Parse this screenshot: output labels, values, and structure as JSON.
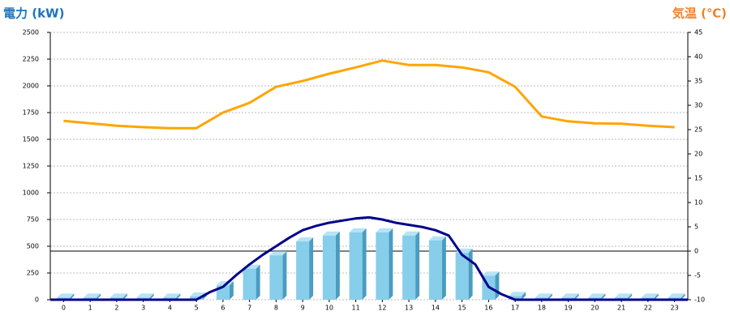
{
  "chart_data": {
    "type": "bar",
    "title": "電力 (kW)",
    "title_right": "気温 (℃)",
    "categories": [
      "0",
      "1",
      "2",
      "3",
      "4",
      "5",
      "6",
      "7",
      "8",
      "9",
      "10",
      "11",
      "12",
      "13",
      "14",
      "15",
      "16",
      "17",
      "18",
      "19",
      "20",
      "21",
      "22",
      "23"
    ],
    "series": [
      {
        "type": "bar",
        "color": "#87ceeb",
        "values": [
          20,
          20,
          20,
          20,
          20,
          30,
          135,
          290,
          415,
          545,
          600,
          630,
          630,
          600,
          555,
          440,
          225,
          35,
          20,
          20,
          20,
          20,
          20,
          20
        ]
      },
      {
        "type": "line",
        "color": "#00008b",
        "x": [
          -0.5,
          5,
          5.5,
          6,
          6.5,
          7,
          7.5,
          8,
          8.5,
          9,
          9.5,
          10,
          10.5,
          11,
          11.5,
          12,
          12.5,
          13,
          13.5,
          14,
          14.5,
          15,
          15.5,
          16,
          16.5,
          17,
          23.5
        ],
        "values": [
          0,
          0,
          70,
          120,
          230,
          330,
          420,
          500,
          580,
          650,
          690,
          720,
          740,
          760,
          770,
          750,
          720,
          700,
          680,
          650,
          600,
          420,
          330,
          120,
          50,
          0,
          0
        ]
      },
      {
        "type": "line",
        "color": "#ffa500",
        "axis": "y2",
        "values": [
          26.8,
          26.3,
          25.8,
          25.5,
          25.3,
          25.3,
          28.5,
          30.5,
          33.8,
          35,
          36.5,
          37.8,
          39.2,
          38.3,
          38.3,
          37.8,
          36.8,
          33.8,
          27.7,
          26.7,
          26.3,
          26.2,
          25.8,
          25.5
        ]
      }
    ],
    "ylim": [
      0,
      2500
    ],
    "yticks": [
      0,
      250,
      500,
      750,
      1000,
      1250,
      1500,
      1750,
      2000,
      2250,
      2500
    ],
    "y2lim": [
      -10,
      45
    ],
    "y2ticks": [
      -10,
      -5,
      0,
      5,
      10,
      15,
      20,
      25,
      30,
      35,
      40,
      45
    ],
    "grid": true
  }
}
